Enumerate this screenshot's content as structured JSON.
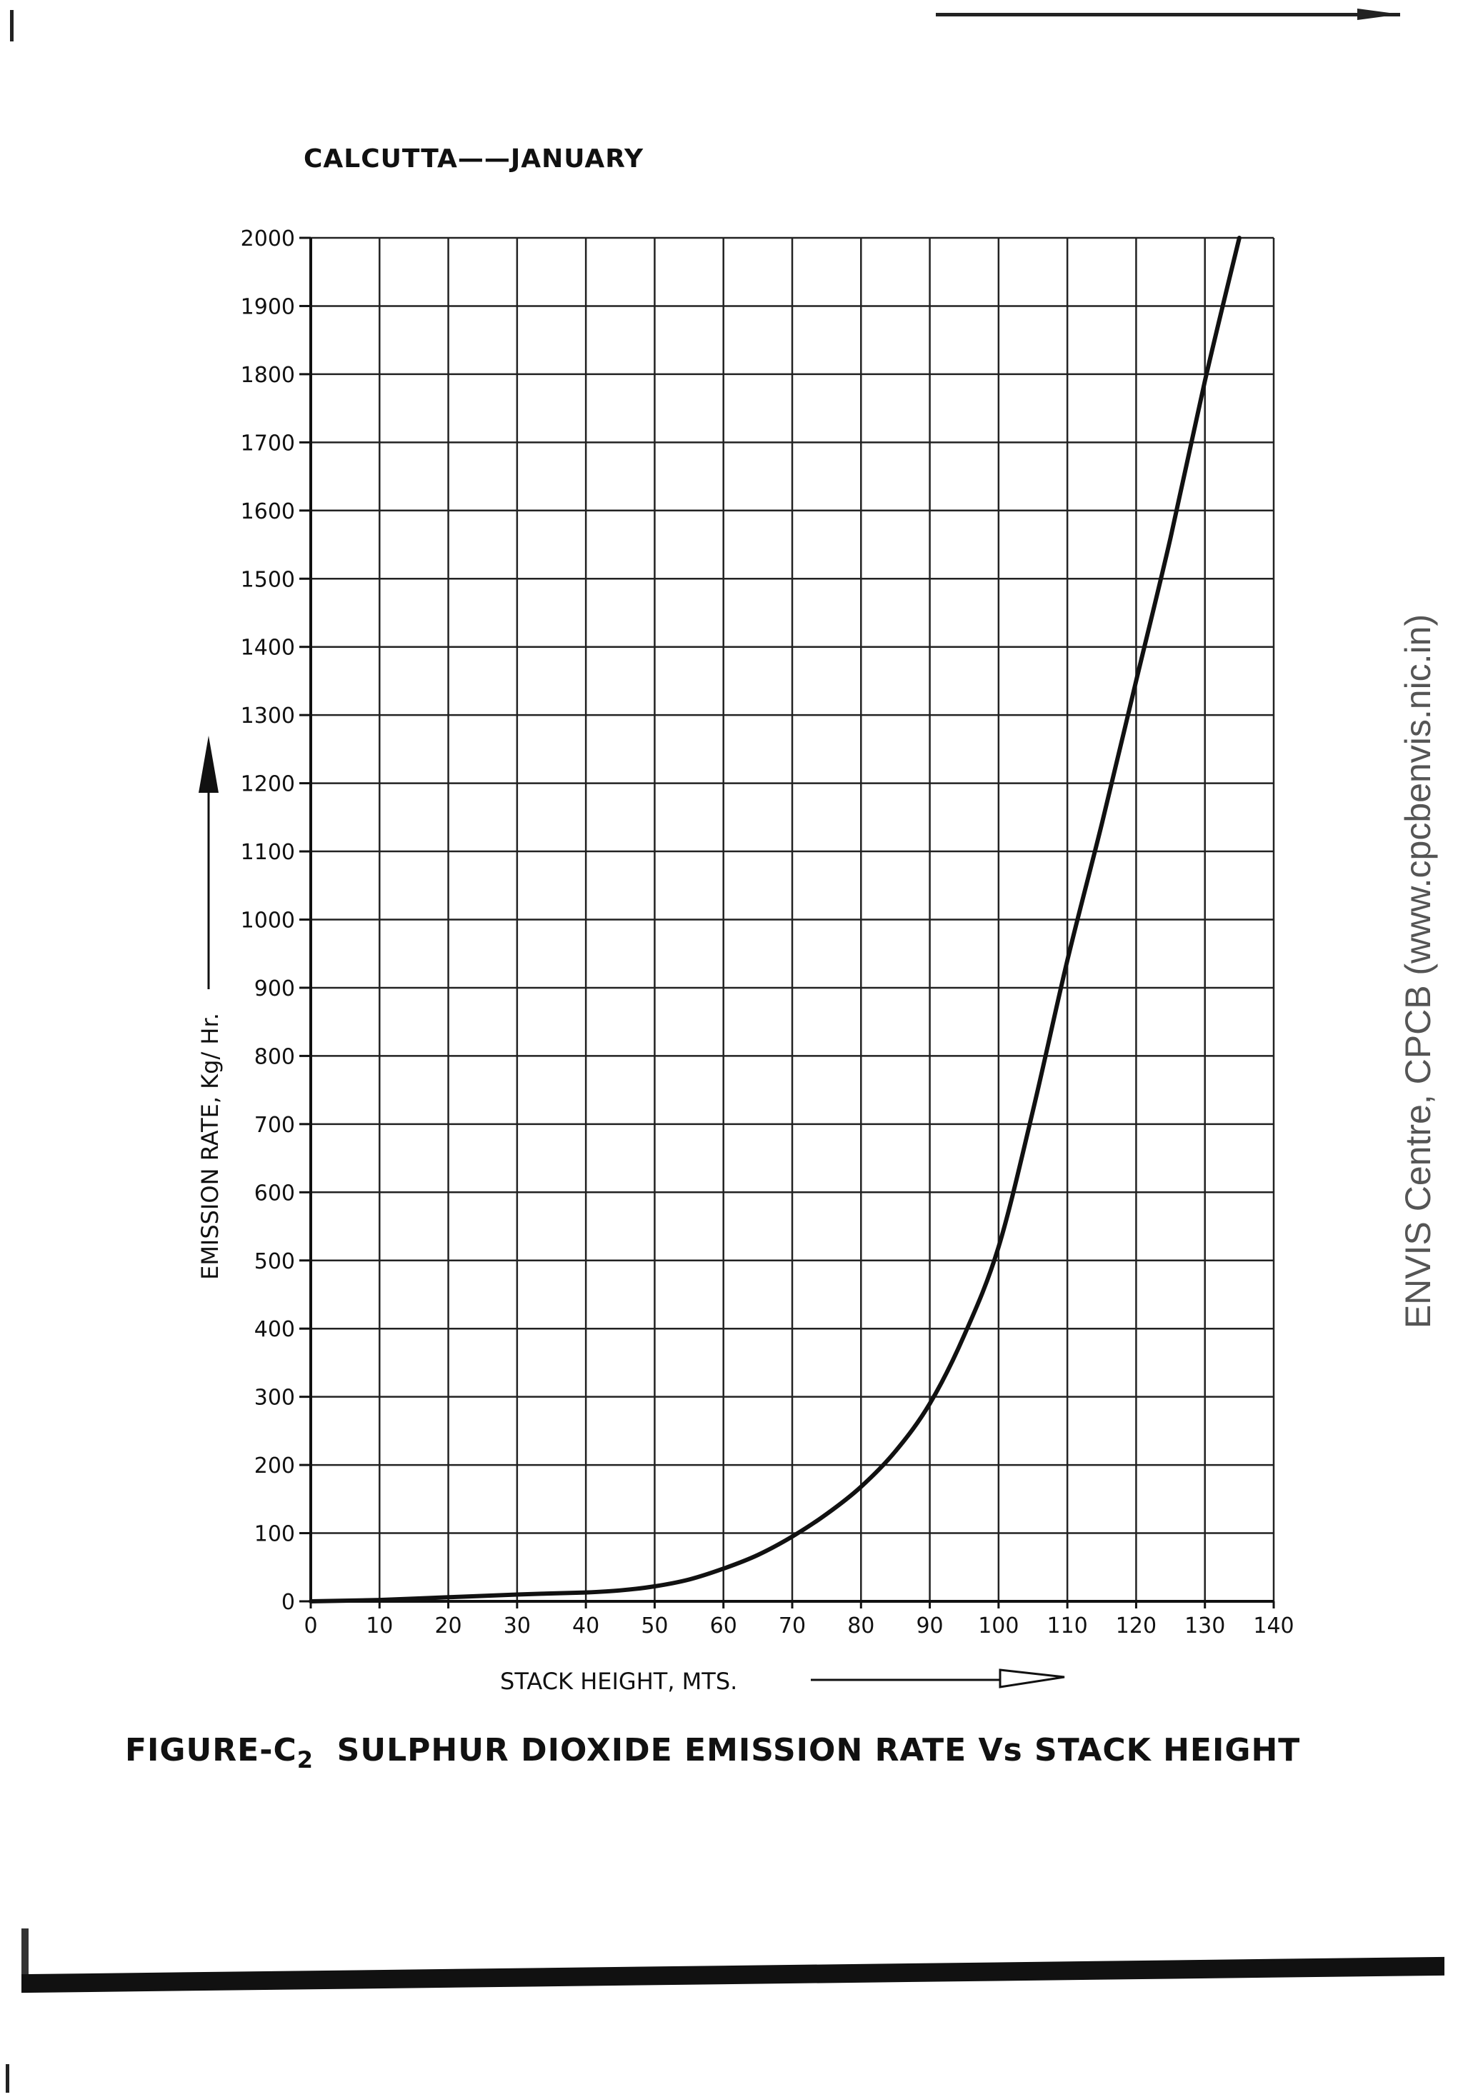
{
  "header": {
    "subtitle": "CALCUTTA——JANUARY"
  },
  "footer": {
    "caption_prefix": "FIGURE-C",
    "caption_sub": "2",
    "caption_rest": "SULPHUR DIOXIDE EMISSION RATE Vs STACK HEIGHT"
  },
  "watermark": "ENVIS Centre, CPCB (www.cpcbenvis.nic.in)",
  "colors": {
    "ink": "#111111",
    "grid": "#222222",
    "watermark": "#555555"
  },
  "chart_data": {
    "type": "line",
    "title": "CALCUTTA——JANUARY",
    "xlabel": "STACK  HEIGHT, MTS.",
    "ylabel": "EMISSION  RATE, Kg/ Hr.",
    "xlim": [
      0,
      140
    ],
    "ylim": [
      0,
      2000
    ],
    "xticks": [
      0,
      10,
      20,
      30,
      40,
      50,
      60,
      70,
      80,
      90,
      100,
      110,
      120,
      130,
      140
    ],
    "yticks": [
      0,
      100,
      200,
      300,
      400,
      500,
      600,
      700,
      800,
      900,
      1000,
      1100,
      1200,
      1300,
      1400,
      1500,
      1600,
      1700,
      1800,
      1900,
      2000
    ],
    "grid": true,
    "series": [
      {
        "x": [
          0,
          10,
          20,
          30,
          40,
          45,
          50,
          55,
          60,
          65,
          70,
          75,
          80,
          85,
          90,
          95,
          100,
          105,
          110,
          115,
          120,
          125,
          130,
          135
        ],
        "y": [
          0,
          2,
          6,
          10,
          13,
          16,
          22,
          32,
          48,
          68,
          95,
          128,
          168,
          220,
          290,
          390,
          520,
          720,
          940,
          1140,
          1350,
          1560,
          1790,
          2000
        ]
      }
    ]
  }
}
